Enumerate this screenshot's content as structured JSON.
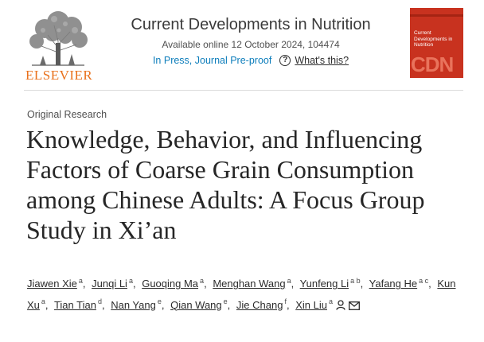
{
  "publisher": {
    "name": "ELSEVIER",
    "logo_icon": "elsevier-tree-icon"
  },
  "journal": {
    "title": "Current Developments in Nutrition",
    "availability": "Available online 12 October 2024, 104474",
    "status": "In Press, Journal Pre-proof",
    "help_label": "What's this?",
    "help_glyph": "?"
  },
  "cover": {
    "title": "Current Developments in Nutrition",
    "abbrev": "CDN",
    "color": "#c8321f"
  },
  "article": {
    "type": "Original Research",
    "title": "Knowledge, Behavior, and Influencing Factors of Coarse Grain Consumption among Chinese Adults: A Focus Group Study in Xi’an"
  },
  "authors": [
    {
      "name": "Jiawen Xie",
      "aff": "a"
    },
    {
      "name": "Junqi Li",
      "aff": "a"
    },
    {
      "name": "Guoqing Ma",
      "aff": "a"
    },
    {
      "name": "Menghan Wang",
      "aff": "a"
    },
    {
      "name": "Yunfeng Li",
      "aff": "a b"
    },
    {
      "name": "Yafang He",
      "aff": "a c"
    },
    {
      "name": "Kun Xu",
      "aff": "a"
    },
    {
      "name": "Tian Tian",
      "aff": "d"
    },
    {
      "name": "Nan Yang",
      "aff": "e"
    },
    {
      "name": "Qian Wang",
      "aff": "e"
    },
    {
      "name": "Jie Chang",
      "aff": "f"
    },
    {
      "name": "Xin Liu",
      "aff": "a",
      "corresponding": true,
      "icons": [
        "person-icon",
        "mail-icon"
      ]
    }
  ]
}
